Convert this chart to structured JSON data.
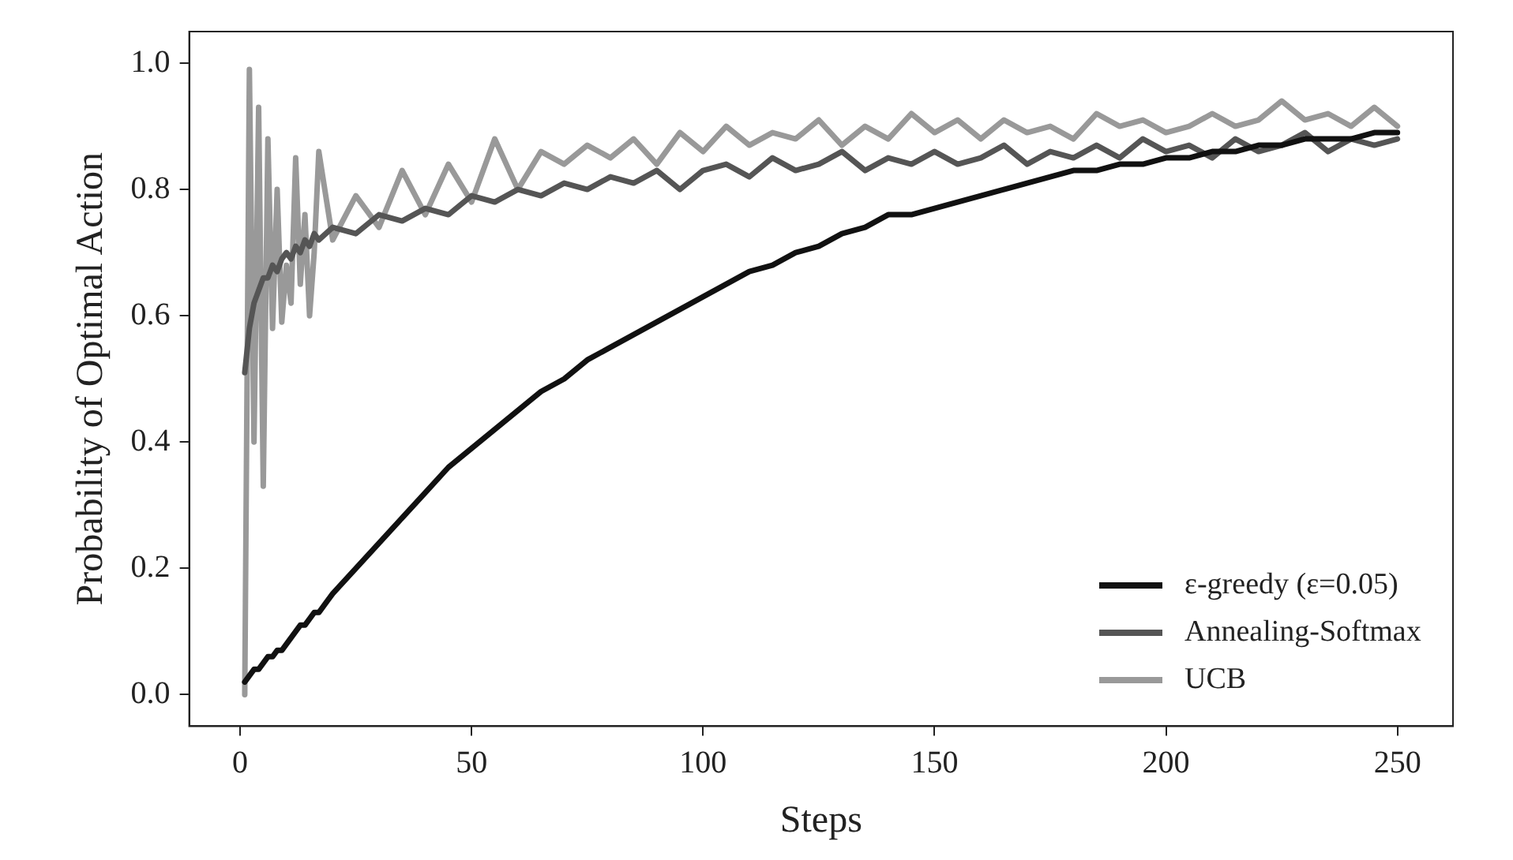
{
  "chart_data": {
    "type": "line",
    "xlabel": "Steps",
    "ylabel": "Probability of Optimal Action",
    "x": [
      1,
      2,
      3,
      4,
      5,
      6,
      7,
      8,
      9,
      10,
      11,
      12,
      13,
      14,
      15,
      16,
      17,
      20,
      25,
      30,
      35,
      40,
      45,
      50,
      55,
      60,
      65,
      70,
      75,
      80,
      85,
      90,
      95,
      100,
      105,
      110,
      115,
      120,
      125,
      130,
      135,
      140,
      145,
      150,
      155,
      160,
      165,
      170,
      175,
      180,
      185,
      190,
      195,
      200,
      205,
      210,
      215,
      220,
      225,
      230,
      235,
      240,
      245,
      250
    ],
    "series": [
      {
        "name": "ε-greedy (ε=0.05)",
        "color": "#111111",
        "values": [
          0.02,
          0.03,
          0.04,
          0.04,
          0.05,
          0.06,
          0.06,
          0.07,
          0.07,
          0.08,
          0.09,
          0.1,
          0.11,
          0.11,
          0.12,
          0.13,
          0.13,
          0.16,
          0.2,
          0.24,
          0.28,
          0.32,
          0.36,
          0.39,
          0.42,
          0.45,
          0.48,
          0.5,
          0.53,
          0.55,
          0.57,
          0.59,
          0.61,
          0.63,
          0.65,
          0.67,
          0.68,
          0.7,
          0.71,
          0.73,
          0.74,
          0.76,
          0.76,
          0.77,
          0.78,
          0.79,
          0.8,
          0.81,
          0.82,
          0.83,
          0.83,
          0.84,
          0.84,
          0.85,
          0.85,
          0.86,
          0.86,
          0.87,
          0.87,
          0.88,
          0.88,
          0.88,
          0.89,
          0.89
        ]
      },
      {
        "name": "Annealing-Softmax",
        "color": "#555555",
        "values": [
          0.51,
          0.58,
          0.62,
          0.64,
          0.66,
          0.66,
          0.68,
          0.67,
          0.69,
          0.7,
          0.69,
          0.71,
          0.7,
          0.72,
          0.71,
          0.73,
          0.72,
          0.74,
          0.73,
          0.76,
          0.75,
          0.77,
          0.76,
          0.79,
          0.78,
          0.8,
          0.79,
          0.81,
          0.8,
          0.82,
          0.81,
          0.83,
          0.8,
          0.83,
          0.84,
          0.82,
          0.85,
          0.83,
          0.84,
          0.86,
          0.83,
          0.85,
          0.84,
          0.86,
          0.84,
          0.85,
          0.87,
          0.84,
          0.86,
          0.85,
          0.87,
          0.85,
          0.88,
          0.86,
          0.87,
          0.85,
          0.88,
          0.86,
          0.87,
          0.89,
          0.86,
          0.88,
          0.87,
          0.88
        ]
      },
      {
        "name": "UCB",
        "color": "#999999",
        "values": [
          0,
          0.99,
          0.4,
          0.93,
          0.33,
          0.88,
          0.58,
          0.8,
          0.59,
          0.68,
          0.62,
          0.85,
          0.65,
          0.76,
          0.6,
          0.7,
          0.86,
          0.72,
          0.79,
          0.74,
          0.83,
          0.76,
          0.84,
          0.78,
          0.88,
          0.8,
          0.86,
          0.84,
          0.87,
          0.85,
          0.88,
          0.84,
          0.89,
          0.86,
          0.9,
          0.87,
          0.89,
          0.88,
          0.91,
          0.87,
          0.9,
          0.88,
          0.92,
          0.89,
          0.91,
          0.88,
          0.91,
          0.89,
          0.9,
          0.88,
          0.92,
          0.9,
          0.91,
          0.89,
          0.9,
          0.92,
          0.9,
          0.91,
          0.94,
          0.91,
          0.92,
          0.9,
          0.93,
          0.9
        ]
      }
    ],
    "xlim": [
      -11,
      262
    ],
    "xticks": [
      0,
      50,
      100,
      150,
      200,
      250
    ],
    "ylim": [
      -0.05,
      1.05
    ],
    "yticks": [
      {
        "value": 0,
        "label": "0.0"
      },
      {
        "value": 0.2,
        "label": "0.2"
      },
      {
        "value": 0.4,
        "label": "0.4"
      },
      {
        "value": 0.6,
        "label": "0.6"
      },
      {
        "value": 0.8,
        "label": "0.8"
      },
      {
        "value": 1,
        "label": "1.0"
      }
    ],
    "grid": false,
    "legend": "bottom right",
    "marker": "none",
    "line_style": "solid"
  }
}
